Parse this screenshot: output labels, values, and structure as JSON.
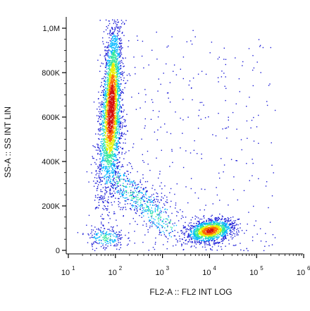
{
  "chart_data": {
    "type": "scatter",
    "subtype": "flow-cytometry density dot plot",
    "xlabel": "FL2-A :: FL2 INT LOG",
    "ylabel": "SS-A :: SS INT LIN",
    "x_scale": "log",
    "xlim": [
      10,
      1000000
    ],
    "ylim": [
      0,
      1050000
    ],
    "x_ticks": [
      {
        "value": 10,
        "base": "10",
        "exp": "1"
      },
      {
        "value": 100,
        "base": "10",
        "exp": "2"
      },
      {
        "value": 1000,
        "base": "10",
        "exp": "3"
      },
      {
        "value": 10000,
        "base": "10",
        "exp": "4"
      },
      {
        "value": 100000,
        "base": "10",
        "exp": "5"
      },
      {
        "value": 1000000,
        "base": "10",
        "exp": "6"
      }
    ],
    "y_ticks": [
      {
        "value": 0,
        "label": "0"
      },
      {
        "value": 200000,
        "label": "200K"
      },
      {
        "value": 400000,
        "label": "400K"
      },
      {
        "value": 600000,
        "label": "600K"
      },
      {
        "value": 800000,
        "label": "800K"
      },
      {
        "value": 1000000,
        "label": "1,0M"
      }
    ],
    "grid": false,
    "legend": "none",
    "density_colors": [
      "#1a1ad6",
      "#00b7ff",
      "#2ee89a",
      "#e8f000",
      "#ff6a00",
      "#d41010"
    ],
    "populations": [
      {
        "x_center": 80,
        "y_center": 640000,
        "y_spread": 180000,
        "x_spread_decades": 0.12,
        "relative_count": 1.0
      },
      {
        "x_center": 10000,
        "y_center": 90000,
        "y_spread": 25000,
        "x_spread_decades": 0.25,
        "relative_count": 0.45
      },
      {
        "x_center": 300,
        "y_center": 180000,
        "y_spread": 60000,
        "x_spread_decades": 0.3,
        "relative_count": 0.18
      },
      {
        "x_center": 60,
        "y_center": 60000,
        "y_spread": 25000,
        "x_spread_decades": 0.2,
        "relative_count": 0.06
      }
    ]
  }
}
